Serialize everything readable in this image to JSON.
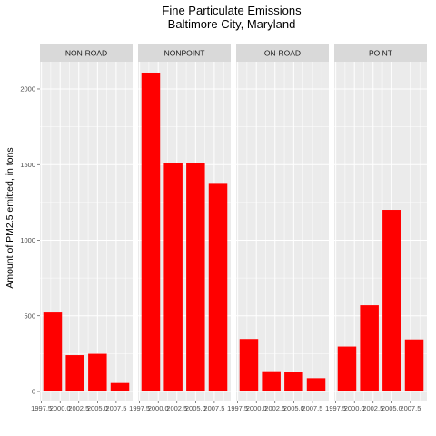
{
  "chart_data": {
    "type": "bar",
    "title_lines": [
      "Fine Particulate Emissions",
      "Baltimore City, Maryland"
    ],
    "xlabel": "",
    "ylabel": "Amount of PM2.5 emitted, in tons",
    "ylim": [
      -60,
      2180
    ],
    "yticks": [
      0,
      500,
      1000,
      1500,
      2000
    ],
    "xlim": [
      1997.3,
      2009.7
    ],
    "xticks": [
      1997.5,
      2000.0,
      2002.5,
      2005.0,
      2007.5
    ],
    "xtick_labels": [
      "1997.5",
      "2000.0",
      "2002.5",
      "2005.0",
      "2007.5"
    ],
    "categories": [
      1999,
      2002,
      2005,
      2008
    ],
    "bar_color": "#ff0000",
    "panel_bg": "#ebebeb",
    "strip_bg": "#d9d9d9",
    "grid": true,
    "facets": [
      {
        "name": "NON-ROAD",
        "values": [
          522,
          240,
          249,
          56
        ]
      },
      {
        "name": "NONPOINT",
        "values": [
          2108,
          1510,
          1510,
          1373
        ]
      },
      {
        "name": "ON-ROAD",
        "values": [
          347,
          134,
          130,
          88
        ]
      },
      {
        "name": "POINT",
        "values": [
          297,
          570,
          1201,
          344
        ]
      }
    ]
  }
}
